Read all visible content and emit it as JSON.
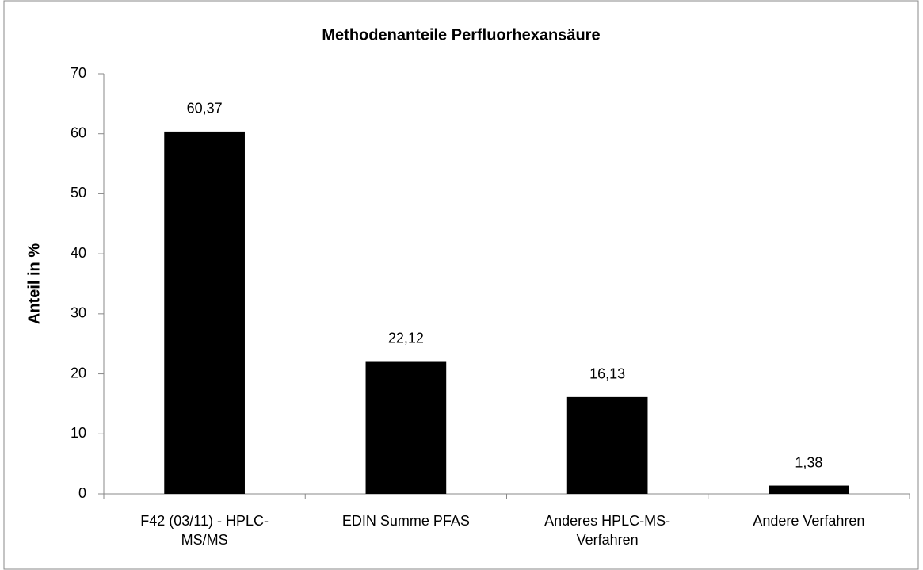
{
  "chart_data": {
    "type": "bar",
    "title": "Methodenanteile Perfluorhexansäure",
    "y_label": "Anteil in %",
    "categories": [
      "F42 (03/11) - HPLC-MS/MS",
      "EDIN Summe PFAS",
      "Anderes HPLC-MS-Verfahren",
      "Andere Verfahren"
    ],
    "values": [
      60.37,
      22.12,
      16.13,
      1.38
    ],
    "value_labels": [
      "60,37",
      "22,12",
      "16,13",
      "1,38"
    ],
    "color": "#000000",
    "ylim": [
      0,
      70
    ],
    "yticks": [
      0,
      10,
      20,
      30,
      40,
      50,
      60,
      70
    ],
    "grid": false
  }
}
